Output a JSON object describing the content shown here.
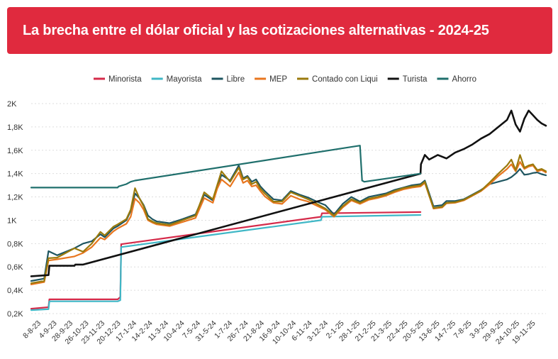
{
  "title": "La brecha entre el dólar oficial y las cotizaciones alternativas - 2024-25",
  "colors": {
    "title_bar": "#e02a3e",
    "minorista": "#d52b4a",
    "mayorista": "#3fb7c6",
    "libre": "#1e5560",
    "mep": "#e8761f",
    "ccl": "#9a7a0c",
    "turista": "#111111",
    "ahorro": "#1f6f6c",
    "grid": "#dddddd",
    "text": "#333333"
  },
  "chart_data": {
    "type": "line",
    "title": "La brecha entre el dólar oficial y las cotizaciones alternativas - 2024-25",
    "xlabel": "",
    "ylabel": "",
    "ylim": [
      200,
      2000
    ],
    "yticks": [
      200,
      400,
      600,
      800,
      1000,
      1200,
      1400,
      1600,
      1800,
      2000
    ],
    "ytick_labels": [
      "0,2K",
      "0,4K",
      "0,6K",
      "0,8K",
      "1K",
      "1,2K",
      "1,4K",
      "1,6K",
      "1,8K",
      "2K"
    ],
    "legend_position": "top",
    "x_range": [
      0,
      119
    ],
    "x_tick_labels": [
      "8-8-23",
      "4-9-23",
      "28-9-23",
      "26-10-23",
      "23-11-23",
      "20-12-23",
      "17-1-24",
      "14-2-24",
      "11-3-24",
      "10-4-24",
      "7-5-24",
      "31-5-24",
      "1-7-24",
      "26-7-24",
      "21-8-24",
      "16-9-24",
      "10-10-24",
      "6-11-24",
      "3-12-24",
      "2-1-25",
      "28-1-25",
      "21-2-25",
      "21-3-25",
      "22-4-25",
      "20-5-25",
      "13-6-25",
      "14-7-25",
      "7-8-25",
      "3-9-25",
      "29-9-25",
      "24-10-25",
      "19-11-25"
    ],
    "series": [
      {
        "name": "Minorista",
        "color_key": "minorista",
        "x": [
          0,
          4,
          4.2,
          20,
          20.6,
          20.8,
          67,
          67.2,
          90
        ],
        "y": [
          242,
          255,
          322,
          322,
          342,
          795,
          1030,
          1060,
          1070
        ]
      },
      {
        "name": "Mayorista",
        "color_key": "mayorista",
        "x": [
          0,
          4,
          4.2,
          20,
          20.6,
          20.8,
          67,
          67.2,
          90
        ],
        "y": [
          230,
          238,
          305,
          305,
          315,
          770,
          1000,
          1030,
          1045
        ]
      },
      {
        "name": "Libre",
        "color_key": "libre",
        "x": [
          0,
          3,
          4,
          6,
          10,
          12,
          14,
          16,
          17,
          19,
          20,
          22,
          23,
          24,
          25,
          26,
          27,
          28,
          29,
          30,
          32,
          35,
          38,
          40,
          42,
          43,
          44,
          46,
          48,
          49,
          50,
          51,
          52,
          53,
          54,
          56,
          58,
          60,
          62,
          64,
          66,
          68,
          70,
          72,
          74,
          76,
          78,
          80,
          82,
          84,
          86,
          88,
          90,
          91,
          92,
          93,
          95,
          96,
          98,
          100,
          102,
          104,
          106,
          108,
          110,
          111,
          112,
          113,
          114,
          115,
          116,
          117,
          118,
          119
        ],
        "y": [
          480,
          500,
          735,
          700,
          760,
          800,
          820,
          880,
          855,
          930,
          950,
          1000,
          1080,
          1230,
          1190,
          1130,
          1040,
          1010,
          990,
          985,
          975,
          1010,
          1050,
          1220,
          1170,
          1290,
          1390,
          1340,
          1470,
          1360,
          1380,
          1330,
          1350,
          1290,
          1250,
          1180,
          1170,
          1250,
          1220,
          1195,
          1160,
          1130,
          1050,
          1140,
          1200,
          1160,
          1200,
          1215,
          1230,
          1260,
          1280,
          1300,
          1310,
          1340,
          1230,
          1120,
          1130,
          1165,
          1165,
          1180,
          1220,
          1260,
          1310,
          1330,
          1350,
          1370,
          1400,
          1440,
          1390,
          1395,
          1405,
          1410,
          1395,
          1385
        ]
      },
      {
        "name": "MEP",
        "color_key": "mep",
        "x": [
          0,
          3,
          4,
          6,
          10,
          12,
          14,
          16,
          17,
          19,
          20,
          22,
          23,
          24,
          25,
          26,
          27,
          28,
          29,
          30,
          32,
          35,
          38,
          40,
          42,
          43,
          44,
          46,
          48,
          49,
          50,
          51,
          52,
          53,
          54,
          56,
          58,
          60,
          62,
          64,
          66,
          68,
          70,
          72,
          74,
          76,
          78,
          80,
          82,
          84,
          86,
          88,
          90,
          91,
          92,
          93,
          95,
          96,
          98,
          100,
          102,
          104,
          106,
          108,
          110,
          111,
          112,
          113,
          114,
          115,
          116,
          117,
          118,
          119
        ],
        "y": [
          450,
          470,
          655,
          665,
          690,
          720,
          770,
          850,
          835,
          905,
          930,
          970,
          1030,
          1185,
          1150,
          1090,
          1000,
          980,
          965,
          960,
          950,
          985,
          1020,
          1190,
          1150,
          1270,
          1350,
          1290,
          1410,
          1320,
          1340,
          1290,
          1300,
          1250,
          1205,
          1150,
          1140,
          1210,
          1180,
          1160,
          1125,
          1090,
          1030,
          1110,
          1170,
          1140,
          1175,
          1190,
          1210,
          1240,
          1265,
          1280,
          1290,
          1320,
          1210,
          1100,
          1110,
          1145,
          1150,
          1170,
          1210,
          1250,
          1310,
          1380,
          1440,
          1480,
          1420,
          1500,
          1440,
          1460,
          1470,
          1420,
          1430,
          1410
        ]
      },
      {
        "name": "Contado con Liqui",
        "color_key": "ccl",
        "x": [
          0,
          3,
          4,
          6,
          10,
          12,
          14,
          16,
          17,
          19,
          20,
          22,
          23,
          24,
          25,
          26,
          27,
          28,
          29,
          30,
          32,
          35,
          38,
          40,
          42,
          43,
          44,
          46,
          48,
          49,
          50,
          51,
          52,
          53,
          54,
          56,
          58,
          60,
          62,
          64,
          66,
          68,
          70,
          72,
          74,
          76,
          78,
          80,
          82,
          84,
          86,
          88,
          90,
          91,
          92,
          93,
          95,
          96,
          98,
          100,
          102,
          104,
          106,
          108,
          110,
          111,
          112,
          113,
          114,
          115,
          116,
          117,
          118,
          119
        ],
        "y": [
          460,
          480,
          675,
          680,
          760,
          730,
          800,
          900,
          870,
          945,
          965,
          1010,
          1090,
          1275,
          1190,
          1120,
          1010,
          990,
          975,
          970,
          960,
          1000,
          1040,
          1240,
          1180,
          1300,
          1420,
          1330,
          1450,
          1350,
          1370,
          1310,
          1330,
          1270,
          1230,
          1160,
          1160,
          1240,
          1210,
          1180,
          1140,
          1100,
          1040,
          1120,
          1180,
          1150,
          1185,
          1200,
          1220,
          1250,
          1275,
          1290,
          1300,
          1330,
          1215,
          1105,
          1115,
          1150,
          1155,
          1175,
          1215,
          1255,
          1325,
          1400,
          1470,
          1520,
          1430,
          1560,
          1450,
          1470,
          1480,
          1430,
          1440,
          1420
        ]
      },
      {
        "name": "Turista",
        "color_key": "turista",
        "x": [
          0,
          4,
          4.2,
          10,
          10.2,
          12,
          90,
          90.1,
          91,
          92,
          94,
          96,
          98,
          100,
          102,
          104,
          106,
          108,
          110,
          111,
          112,
          113,
          114,
          115,
          116,
          117,
          118,
          119
        ],
        "y": [
          520,
          530,
          610,
          610,
          620,
          620,
          1400,
          1480,
          1560,
          1520,
          1560,
          1530,
          1580,
          1610,
          1650,
          1700,
          1740,
          1800,
          1860,
          1940,
          1820,
          1760,
          1870,
          1940,
          1900,
          1860,
          1830,
          1810
        ]
      },
      {
        "name": "Ahorro",
        "color_key": "ahorro",
        "x": [
          0,
          20,
          20.2,
          22,
          23,
          24,
          76,
          76.5,
          77,
          90
        ],
        "y": [
          1280,
          1280,
          1290,
          1310,
          1330,
          1340,
          1640,
          1340,
          1330,
          1400
        ]
      }
    ]
  }
}
